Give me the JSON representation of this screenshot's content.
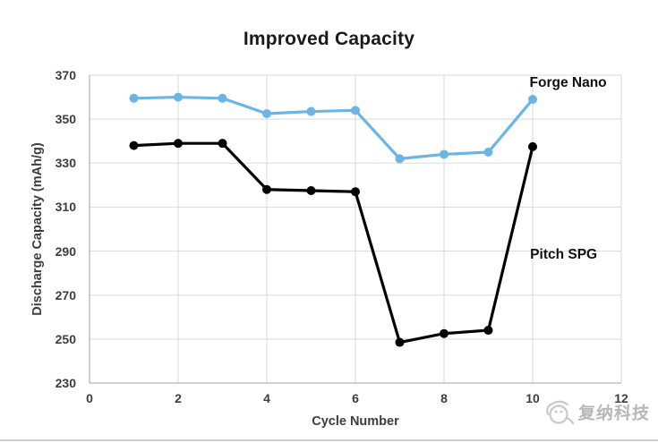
{
  "watermark": {
    "text": "复纳科技"
  },
  "chart_data": {
    "type": "line",
    "title": "Improved Capacity",
    "xlabel": "Cycle Number",
    "ylabel": "Discharge Capacity (mAh/g)",
    "xlim": [
      0,
      12
    ],
    "ylim": [
      230,
      370
    ],
    "x_ticks": [
      0,
      2,
      4,
      6,
      8,
      10,
      12
    ],
    "y_ticks": [
      230,
      250,
      270,
      290,
      310,
      330,
      350,
      370
    ],
    "grid": true,
    "legend_position": "inline-annotations",
    "x": [
      1,
      2,
      3,
      4,
      5,
      6,
      7,
      8,
      9,
      10
    ],
    "series": [
      {
        "name": "Forge Nano",
        "color": "#6CB4E4",
        "values": [
          359.5,
          360,
          359.5,
          352.5,
          353.5,
          354,
          332,
          334,
          335,
          359
        ]
      },
      {
        "name": "Pitch SPG",
        "color": "#000000",
        "values": [
          338,
          339,
          339,
          318,
          317.5,
          317,
          248.5,
          252.5,
          254,
          337.5
        ]
      }
    ],
    "annotations": [
      {
        "text": "Forge Nano",
        "x": 10.8,
        "y": 366.5
      },
      {
        "text": "Pitch SPG",
        "x": 10.7,
        "y": 288
      }
    ],
    "colors": {
      "grid": "#d9d9d9",
      "axis": "#b7b7b7",
      "tick_text": "#3d3d3d",
      "title_text": "#1a1a1a",
      "annotation_text": "#111111",
      "watermark": "#9b9b9b"
    }
  }
}
